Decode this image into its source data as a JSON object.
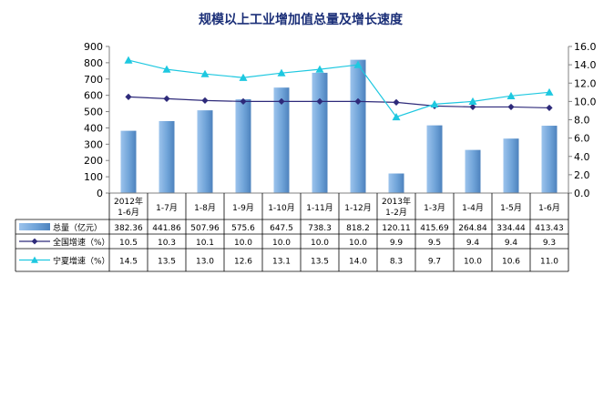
{
  "chart_data": {
    "type": "bar",
    "title": "规模以上工业增加值总量及增长速度",
    "categories": [
      [
        "2012年",
        "1-6月"
      ],
      [
        "1-7月"
      ],
      [
        "1-8月"
      ],
      [
        "1-9月"
      ],
      [
        "1-10月"
      ],
      [
        "1-11月"
      ],
      [
        "1-12月"
      ],
      [
        "2013年",
        "1-2月"
      ],
      [
        "1-3月"
      ],
      [
        "1-4月"
      ],
      [
        "1-5月"
      ],
      [
        "1-6月"
      ]
    ],
    "left_axis": {
      "ylim": [
        0,
        900
      ],
      "ticks": [
        "0",
        "100",
        "200",
        "300",
        "400",
        "500",
        "600",
        "700",
        "800",
        "900"
      ]
    },
    "right_axis": {
      "ylim": [
        0,
        16
      ],
      "ticks": [
        "0.0",
        "2.0",
        "4.0",
        "6.0",
        "8.0",
        "10.0",
        "12.0",
        "14.0",
        "16.0"
      ]
    },
    "series": [
      {
        "name": "总量（亿元）",
        "kind": "bar",
        "axis": "left",
        "color": "#6fa3d8",
        "values": [
          382.36,
          441.86,
          507.96,
          575.6,
          647.5,
          738.3,
          818.2,
          120.11,
          415.69,
          264.84,
          334.44,
          413.43
        ],
        "table_values": [
          "382.36",
          "441.86",
          "507.96",
          "575.6",
          "647.5",
          "738.3",
          "818.2",
          "120.11",
          "415.69",
          "264.84",
          "334.44",
          "413.43"
        ]
      },
      {
        "name": "全国增速（%）",
        "kind": "line",
        "axis": "right",
        "color": "#2e2a7a",
        "marker": "diamond",
        "values": [
          10.5,
          10.3,
          10.1,
          10.0,
          10.0,
          10.0,
          10.0,
          9.9,
          9.5,
          9.4,
          9.4,
          9.3
        ],
        "table_values": [
          "10.5",
          "10.3",
          "10.1",
          "10.0",
          "10.0",
          "10.0",
          "10.0",
          "9.9",
          "9.5",
          "9.4",
          "9.4",
          "9.3"
        ]
      },
      {
        "name": "宁夏增速（%）",
        "kind": "line",
        "axis": "right",
        "color": "#1ec8e0",
        "marker": "triangle",
        "values": [
          14.5,
          13.5,
          13.0,
          12.6,
          13.1,
          13.5,
          14.0,
          8.3,
          9.7,
          10.0,
          10.6,
          11.0
        ],
        "table_values": [
          "14.5",
          "13.5",
          "13.0",
          "12.6",
          "13.1",
          "13.5",
          "14.0",
          "8.3",
          "9.7",
          "10.0",
          "10.6",
          "11.0"
        ]
      }
    ],
    "grid": false,
    "legend": "data-table-left"
  }
}
